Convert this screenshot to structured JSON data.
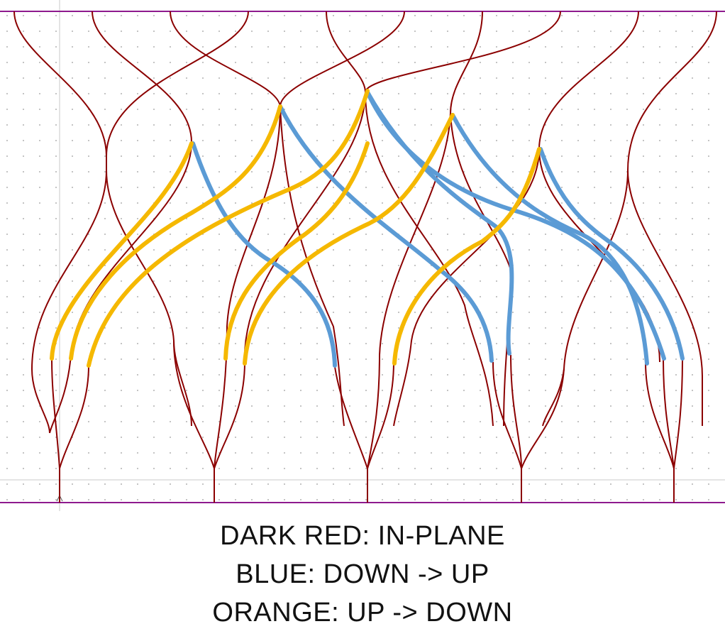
{
  "diagram": {
    "colors": {
      "in_plane": "#8b0000",
      "down_up": "#5b9bd5",
      "up_down": "#f5b800",
      "border": "#8e1a8e",
      "grid_dot": "#9a9a9a",
      "guide": "#bdbdbd"
    }
  },
  "legend": {
    "in_plane": "DARK RED: IN-PLANE",
    "down_up": "BLUE: DOWN -> UP",
    "up_down": "ORANGE: UP -> DOWN"
  }
}
